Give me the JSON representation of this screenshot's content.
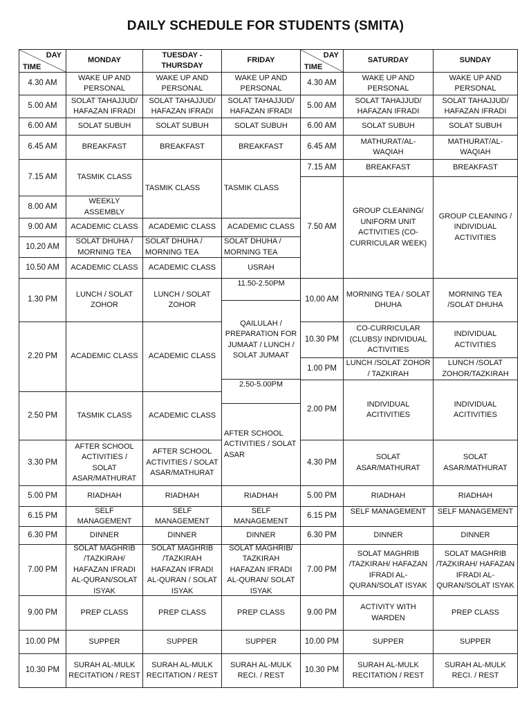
{
  "title": "DAILY SCHEDULE FOR STUDENTS (SMITA)",
  "headers": {
    "day": "DAY",
    "time": "TIME",
    "monday": "MONDAY",
    "tue_thu": "TUESDAY - THURSDAY",
    "friday": "FRIDAY",
    "saturday": "SATURDAY",
    "sunday": "SUNDAY"
  },
  "left_times": [
    "4.30  AM",
    "5.00  AM",
    "6.00 AM",
    "6.45 AM",
    "7.15 AM",
    "8.00 AM",
    "9.00 AM",
    "10.20  AM",
    "10.50  AM",
    "1.30 PM",
    "2.20 PM",
    "2.50 PM",
    "3.30 PM",
    "5.00 PM",
    "6.15 PM",
    "6.30 PM",
    "7.00 PM",
    "9.00 PM",
    "10.00 PM",
    "10.30 PM"
  ],
  "monday": [
    "WAKE UP AND PERSONAL",
    "SOLAT TAHAJJUD/ HAFAZAN IFRADI",
    "SOLAT  SUBUH",
    "BREAKFAST",
    "TASMIK CLASS",
    "WEEKLY ASSEMBLY",
    "ACADEMIC CLASS",
    "SOLAT DHUHA / MORNING TEA",
    "ACADEMIC CLASS",
    "LUNCH / SOLAT ZOHOR",
    "ACADEMIC CLASS",
    "TASMIK CLASS",
    "AFTER SCHOOL ACTIVITIES  / SOLAT ASAR/MATHURAT",
    "RIADHAH",
    "SELF MANAGEMENT",
    "DINNER",
    "SOLAT MAGHRIB /TAZKIRAH/ HAFAZAN IFRADI AL-QURAN/SOLAT ISYAK",
    "PREP CLASS",
    "SUPPER",
    "SURAH AL-MULK RECITATION / REST"
  ],
  "tue_thu": [
    "WAKE UP AND PERSONAL",
    "SOLAT TAHAJJUD/ HAFAZAN IFRADI",
    "SOLAT  SUBUH",
    "BREAKFAST",
    "TASMIK CLASS",
    "ACADEMIC CLASS",
    "SOLAT DHUHA / MORNING TEA",
    "ACADEMIC CLASS",
    "LUNCH / SOLAT ZOHOR",
    "ACADEMIC CLASS",
    "ACADEMIC CLASS",
    "AFTER SCHOOL ACTIVITIES / SOLAT ASAR/MATHURAT",
    "RIADHAH",
    "SELF MANAGEMENT",
    "DINNER",
    "SOLAT MAGHRIB /TAZKIRAH HAFAZAN IFRADI AL-QURAN / SOLAT ISYAK",
    "PREP CLASS",
    "SUPPER",
    "SURAH AL-MULK RECITATION / REST"
  ],
  "friday": [
    "WAKE UP AND PERSONAL",
    "SOLAT TAHAJJUD/ HAFAZAN IFRADI",
    "SOLAT  SUBUH",
    "BREAKFAST",
    "TASMIK CLASS",
    "ACADEMIC CLASS",
    "SOLAT DHUHA / MORNING TEA",
    "USRAH",
    "11.50-2.50PM",
    "QAILULAH / PREPARATION FOR JUMAAT / LUNCH / SOLAT JUMAAT",
    "2.50-5.00PM",
    "AFTER SCHOOL ACTIVITIES  / SOLAT ASAR",
    "RIADHAH",
    "SELF MANAGEMENT",
    "DINNER",
    "SOLAT MAGHRIB/ TAZKIRAH HAFAZAN IFRADI AL-QURAN/ SOLAT ISYAK",
    "PREP CLASS",
    "SUPPER",
    "SURAH AL-MULK RECI. / REST"
  ],
  "right_times": [
    "4.30 AM",
    "5.00 AM",
    "6.00 AM",
    "6.45 AM",
    "7.15 AM",
    "7.50 AM",
    "10.00 AM",
    "10.30 PM",
    "1.00 PM",
    "2.00 PM",
    "4.30 PM",
    "5.00 PM",
    "6.15 PM",
    "6.30 PM",
    "7.00 PM",
    "9.00 PM",
    "10.00 PM",
    "10.30 PM"
  ],
  "saturday": [
    "WAKE UP AND PERSONAL",
    "SOLAT TAHAJJUD/ HAFAZAN IFRADI",
    "SOLAT  SUBUH",
    "MATHURAT/AL-WAQIAH",
    "BREAKFAST",
    "GROUP CLEANING/ UNIFORM UNIT ACTIVITIES (CO-CURRICULAR WEEK)",
    "MORNING TEA / SOLAT DHUHA",
    "CO-CURRICULAR (CLUBS)/ INDIVIDUAL ACTIVITIES",
    "LUNCH /SOLAT ZOHOR / TAZKIRAH",
    "INDIVIDUAL ACITIVITIES",
    "SOLAT ASAR/MATHURAT",
    "RIADHAH",
    "SELF MANAGEMENT",
    "DINNER",
    "SOLAT MAGHRIB /TAZKIRAH/ HAFAZAN IFRADI AL-QURAN/SOLAT ISYAK",
    "ACTIVITY WITH WARDEN",
    "SUPPER",
    "SURAH AL-MULK RECITATION / REST"
  ],
  "sunday": [
    "WAKE UP AND PERSONAL",
    "SOLAT TAHAJJUD/ HAFAZAN IFRADI",
    "SOLAT  SUBUH",
    "MATHURAT/AL-WAQIAH",
    "BREAKFAST",
    "GROUP CLEANING / INDIVIDUAL ACTIVITIES",
    "MORNING TEA /SOLAT DHUHA",
    "INDIVIDUAL ACTIVITIES",
    "LUNCH /SOLAT ZOHOR/TAZKIRAH",
    "INDIVIDUAL ACITIVITIES",
    "SOLAT ASAR/MATHURAT",
    "RIADHAH",
    "SELF MANAGEMENT",
    "DINNER",
    "SOLAT MAGHRIB /TAZKIRAH/ HAFAZAN IFRADI AL-QURAN/SOLAT ISYAK",
    "PREP CLASS",
    "SUPPER",
    "SURAH AL-MULK RECI. / REST"
  ]
}
